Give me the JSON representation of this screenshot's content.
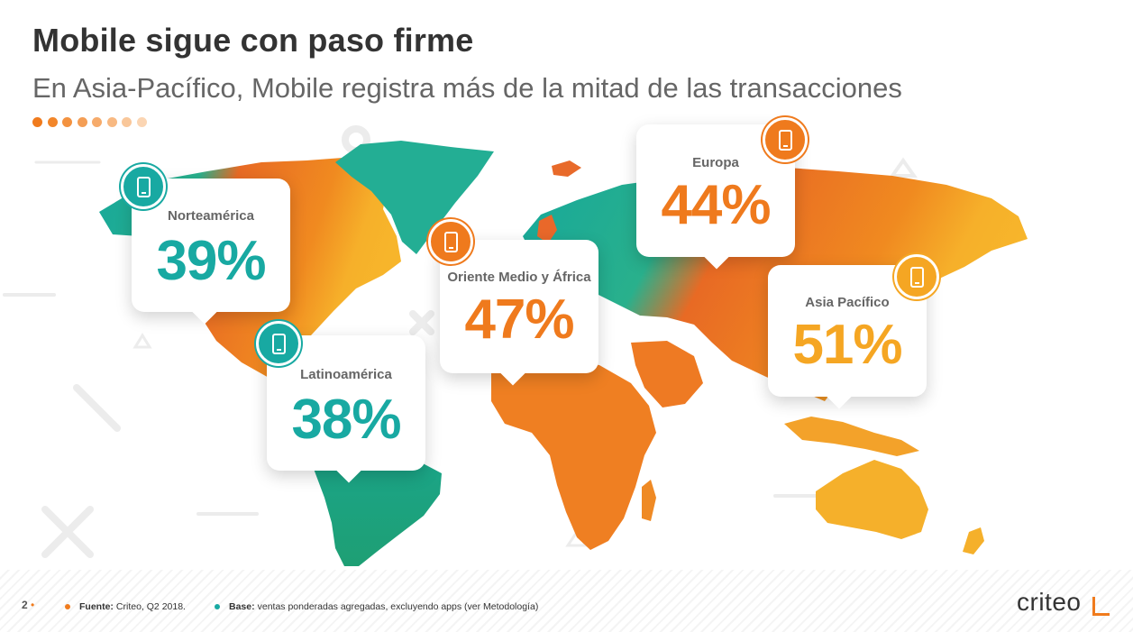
{
  "slide": {
    "title": "Mobile sigue con paso firme",
    "subtitle": "En Asia-Pacífico, Mobile registra más de la mitad de las transacciones"
  },
  "progress_dots": [
    "#f07b1d",
    "#f2862a",
    "#f39240",
    "#f49e55",
    "#f6ab6b",
    "#f8b982",
    "#f9c79a",
    "#fbd5b3"
  ],
  "regions": [
    {
      "label": "Norteamérica",
      "value": "39%",
      "color": "#18a9a2",
      "icon": "mobile-phone-icon"
    },
    {
      "label": "Latinoamérica",
      "value": "38%",
      "color": "#18a9a2",
      "icon": "mobile-phone-icon"
    },
    {
      "label": "Oriente Medio y África",
      "value": "47%",
      "color": "#ef7a1d",
      "icon": "mobile-phone-icon"
    },
    {
      "label": "Europa",
      "value": "44%",
      "color": "#ef7a1d",
      "icon": "mobile-phone-icon"
    },
    {
      "label": "Asia Pacífico",
      "value": "51%",
      "color": "#f5a623",
      "icon": "mobile-phone-icon"
    }
  ],
  "footer": {
    "page_number": "2",
    "source_label": "Fuente:",
    "source_text": "Criteo, Q2 2018.",
    "base_label": "Base:",
    "base_text": "ventas ponderadas agregadas, excluyendo apps (ver Metodología)",
    "logo": "criteo",
    "bullet_colors": [
      "#f07b1d",
      "#18a9a2"
    ]
  }
}
